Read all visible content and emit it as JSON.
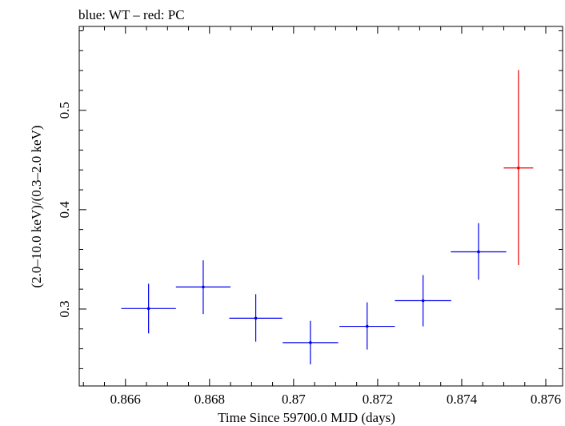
{
  "chart_data": {
    "type": "scatter",
    "title": "blue: WT – red: PC",
    "xlabel": "Time Since 59700.0 MJD (days)",
    "ylabel": "(2.0–10.0 keV)/(0.3–2.0 keV)",
    "xlim": [
      0.8649,
      0.8764
    ],
    "ylim": [
      0.2226,
      0.5844
    ],
    "x_ticks": [
      {
        "value": 0.866,
        "label": "0.866"
      },
      {
        "value": 0.868,
        "label": "0.868"
      },
      {
        "value": 0.87,
        "label": "0.87"
      },
      {
        "value": 0.872,
        "label": "0.872"
      },
      {
        "value": 0.874,
        "label": "0.874"
      },
      {
        "value": 0.876,
        "label": "0.876"
      }
    ],
    "y_ticks": [
      {
        "value": 0.3,
        "label": "0.3"
      },
      {
        "value": 0.4,
        "label": "0.4"
      },
      {
        "value": 0.5,
        "label": "0.5"
      }
    ],
    "grid": false,
    "series": [
      {
        "name": "WT",
        "color": "#0000ee",
        "points": [
          {
            "x": 0.86655,
            "y": 0.3005,
            "xerr": 0.00065,
            "ylo": 0.2755,
            "yhi": 0.3255
          },
          {
            "x": 0.86785,
            "y": 0.3222,
            "xerr": 0.00065,
            "ylo": 0.295,
            "yhi": 0.349
          },
          {
            "x": 0.8691,
            "y": 0.2908,
            "xerr": 0.00063,
            "ylo": 0.2672,
            "yhi": 0.315
          },
          {
            "x": 0.8704,
            "y": 0.2662,
            "xerr": 0.00066,
            "ylo": 0.2443,
            "yhi": 0.2881
          },
          {
            "x": 0.87175,
            "y": 0.2826,
            "xerr": 0.00066,
            "ylo": 0.2592,
            "yhi": 0.3068
          },
          {
            "x": 0.87308,
            "y": 0.3084,
            "xerr": 0.00067,
            "ylo": 0.2826,
            "yhi": 0.3342
          },
          {
            "x": 0.8744,
            "y": 0.3576,
            "xerr": 0.00066,
            "ylo": 0.3295,
            "yhi": 0.3865
          }
        ]
      },
      {
        "name": "PC",
        "color": "#ee0000",
        "points": [
          {
            "x": 0.87535,
            "y": 0.442,
            "xerr": 0.00035,
            "ylo": 0.3443,
            "yhi": 0.5405
          }
        ]
      }
    ]
  }
}
